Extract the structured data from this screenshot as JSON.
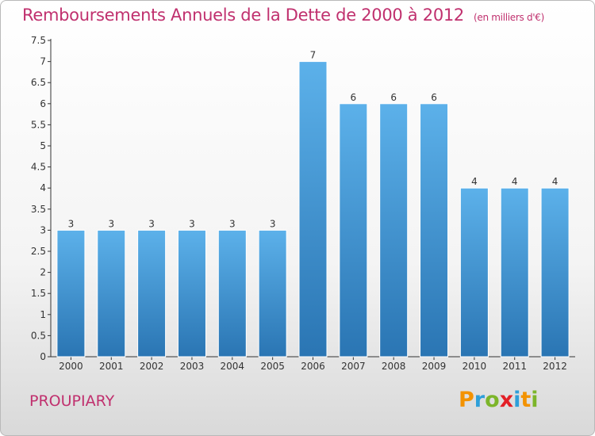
{
  "header": {
    "title": "Remboursements Annuels de la Dette de 2000 à 2012",
    "unit": "(en milliers d'€)"
  },
  "footer": {
    "commune": "PROUPIARY",
    "logo_letters": [
      "P",
      "r",
      "o",
      "x",
      "i",
      "t",
      "i"
    ],
    "logo_colors": [
      "#f39200",
      "#2e9fd9",
      "#7cb52a",
      "#e31f26",
      "#2e9fd9",
      "#f39200",
      "#7cb52a"
    ]
  },
  "colors": {
    "bar_light": "#5cb1ea",
    "bar_dark": "#2a75b3",
    "title": "#c0306e"
  },
  "chart_data": {
    "type": "bar",
    "title": "Remboursements Annuels de la Dette de 2000 à 2012",
    "categories": [
      "2000",
      "2001",
      "2002",
      "2003",
      "2004",
      "2005",
      "2006",
      "2007",
      "2008",
      "2009",
      "2010",
      "2011",
      "2012"
    ],
    "values": [
      3,
      3,
      3,
      3,
      3,
      3,
      7,
      6,
      6,
      6,
      4,
      4,
      4
    ],
    "value_labels": [
      "3",
      "3",
      "3",
      "3",
      "3",
      "3",
      "7",
      "6",
      "6",
      "6",
      "4",
      "4",
      "4"
    ],
    "yticks": [
      "0",
      "0.5",
      "1",
      "1.5",
      "2",
      "2.5",
      "3",
      "3.5",
      "4",
      "4.5",
      "5",
      "5.5",
      "6",
      "6.5",
      "7",
      "7.5"
    ],
    "ylim": [
      0,
      7.5
    ],
    "grid": false
  }
}
